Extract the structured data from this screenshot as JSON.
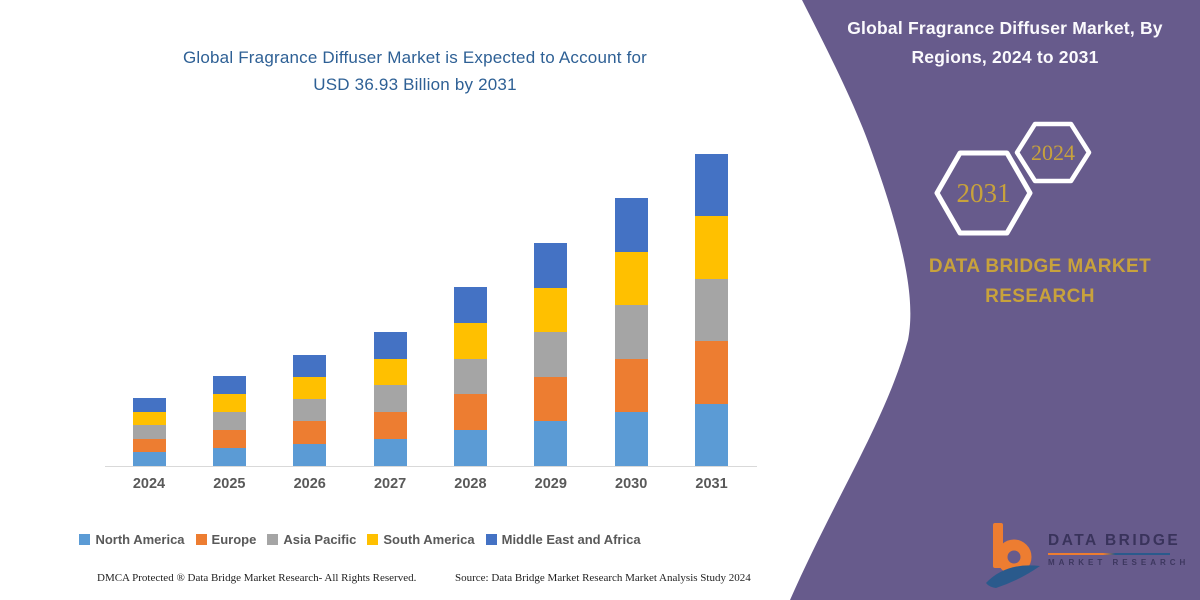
{
  "main_title": {
    "line1": "Global Fragrance Diffuser Market is Expected to Account for",
    "line2": "USD 36.93 Billion by 2031"
  },
  "chart_data": {
    "type": "bar",
    "stacked": true,
    "unit": "USD Billion",
    "title": "Global Fragrance Diffuser Market is Expected to Account for USD 36.93 Billion by 2031",
    "categories": [
      "2024",
      "2025",
      "2026",
      "2027",
      "2028",
      "2029",
      "2030",
      "2031"
    ],
    "totals": [
      8.0,
      10.6,
      13.2,
      15.9,
      21.2,
      26.4,
      31.7,
      36.93
    ],
    "series": [
      {
        "name": "North America",
        "color": "#5B9BD5",
        "values": [
          1.6,
          2.12,
          2.64,
          3.18,
          4.24,
          5.28,
          6.34,
          7.39
        ]
      },
      {
        "name": "Europe",
        "color": "#ED7D31",
        "values": [
          1.6,
          2.12,
          2.64,
          3.18,
          4.24,
          5.28,
          6.34,
          7.39
        ]
      },
      {
        "name": "Asia Pacific",
        "color": "#A5A5A5",
        "values": [
          1.6,
          2.12,
          2.64,
          3.18,
          4.24,
          5.28,
          6.34,
          7.39
        ]
      },
      {
        "name": "South America",
        "color": "#FFC000",
        "values": [
          1.6,
          2.12,
          2.64,
          3.18,
          4.24,
          5.28,
          6.34,
          7.39
        ]
      },
      {
        "name": "Middle East and Africa",
        "color": "#4472C4",
        "values": [
          1.6,
          2.12,
          2.64,
          3.18,
          4.24,
          5.28,
          6.34,
          7.39
        ]
      }
    ],
    "xlabel": "",
    "ylabel": "",
    "ylim": [
      0,
      38.6
    ],
    "grid": false,
    "legend_position": "bottom"
  },
  "panel": {
    "background_color": "#675B8C",
    "title_line1": "Global Fragrance Diffuser Market, By",
    "title_line2": "Regions, 2024 to 2031",
    "hexagons": [
      {
        "label": "2031"
      },
      {
        "label": "2024"
      }
    ],
    "brand_line1": "DATA BRIDGE MARKET",
    "brand_line2": "RESEARCH",
    "gold_color": "#C8A23C",
    "logo": {
      "name": "DATA BRIDGE",
      "sub": "MARKET RESEARCH"
    }
  },
  "footer": {
    "left": "DMCA Protected ® Data Bridge Market Research- All Rights Reserved.",
    "source": "Source: Data Bridge Market Research Market Analysis Study 2024"
  }
}
